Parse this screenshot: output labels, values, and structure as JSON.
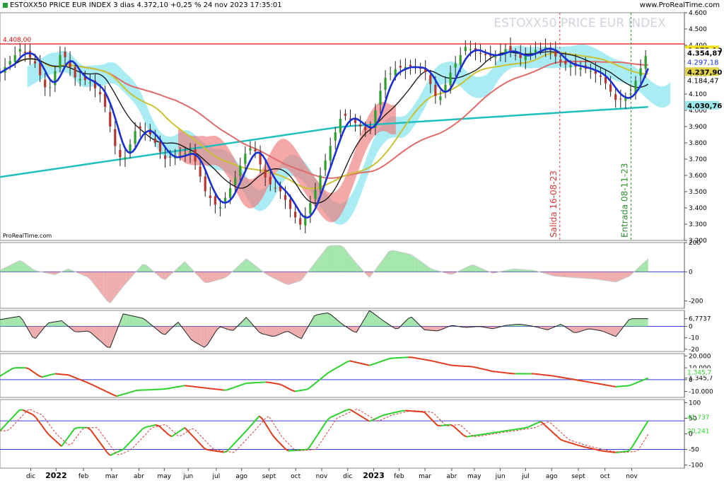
{
  "header": {
    "title": "ESTOXX50 PRICE EUR INDEX 3 dias 4.372,10 +0,25 % 24 nov 2023 17:35:01",
    "site": "www.ProRealTime.com"
  },
  "chart_data": [
    {
      "type": "candlestick",
      "watermark": "ESTOXX50 PRICE EUR INDEX",
      "credit": "ProRealTime.com",
      "ylim": [
        3200,
        4600
      ],
      "y_ticks": [
        "4.600",
        "4.500",
        "4.400",
        "4.300",
        "4.200",
        "4.100",
        "4.000",
        "3.900",
        "3.800",
        "3.700",
        "3.600",
        "3.500",
        "3.400",
        "3.300",
        "3.200"
      ],
      "x_ticks": [
        "dic",
        "2022",
        "feb",
        "mar",
        "abr",
        "may",
        "jun",
        "jul",
        "ago",
        "sept",
        "oct",
        "nov",
        "dic",
        "2023",
        "feb",
        "mar",
        "abr",
        "may",
        "jun",
        "jul",
        "ago",
        "sept",
        "oct",
        "nov"
      ],
      "x_tick_t": [
        0.045,
        0.082,
        0.122,
        0.163,
        0.203,
        0.24,
        0.275,
        0.316,
        0.353,
        0.393,
        0.432,
        0.47,
        0.508,
        0.546,
        0.583,
        0.621,
        0.66,
        0.693,
        0.731,
        0.768,
        0.806,
        0.845,
        0.884,
        0.923
      ],
      "close_path": [
        [
          0.0,
          4230
        ],
        [
          0.03,
          4380
        ],
        [
          0.05,
          4300
        ],
        [
          0.07,
          4100
        ],
        [
          0.09,
          4370
        ],
        [
          0.11,
          4200
        ],
        [
          0.13,
          4180
        ],
        [
          0.15,
          4080
        ],
        [
          0.17,
          3750
        ],
        [
          0.18,
          3680
        ],
        [
          0.2,
          3900
        ],
        [
          0.22,
          3850
        ],
        [
          0.24,
          3700
        ],
        [
          0.26,
          3720
        ],
        [
          0.28,
          3750
        ],
        [
          0.3,
          3500
        ],
        [
          0.32,
          3390
        ],
        [
          0.34,
          3550
        ],
        [
          0.36,
          3750
        ],
        [
          0.37,
          3780
        ],
        [
          0.39,
          3560
        ],
        [
          0.41,
          3500
        ],
        [
          0.43,
          3350
        ],
        [
          0.44,
          3290
        ],
        [
          0.46,
          3500
        ],
        [
          0.48,
          3750
        ],
        [
          0.5,
          3980
        ],
        [
          0.52,
          3920
        ],
        [
          0.54,
          3860
        ],
        [
          0.56,
          4190
        ],
        [
          0.58,
          4260
        ],
        [
          0.6,
          4270
        ],
        [
          0.62,
          4250
        ],
        [
          0.64,
          4050
        ],
        [
          0.66,
          4250
        ],
        [
          0.68,
          4390
        ],
        [
          0.7,
          4350
        ],
        [
          0.72,
          4330
        ],
        [
          0.74,
          4380
        ],
        [
          0.76,
          4320
        ],
        [
          0.78,
          4370
        ],
        [
          0.8,
          4390
        ],
        [
          0.82,
          4290
        ],
        [
          0.84,
          4270
        ],
        [
          0.86,
          4250
        ],
        [
          0.88,
          4200
        ],
        [
          0.9,
          4060
        ],
        [
          0.92,
          4090
        ],
        [
          0.94,
          4300
        ],
        [
          0.947,
          4372
        ]
      ],
      "ma_blue_label": "4.297,18",
      "ma_yellow_label": "4.237,90",
      "ma_red_label": "4.184,47",
      "ma_cyan_label": "4.030,76",
      "last_price_label": "4.372,10",
      "black_line_label": "4.354,87",
      "resistance": {
        "value": 4408,
        "label": "4.408,00"
      },
      "annotations": [
        {
          "label": "Salida 16-08-23",
          "t": 0.818,
          "color": "#d23b3b"
        },
        {
          "label": "Entrada 08-11-23",
          "t": 0.922,
          "color": "#2f8f2f"
        }
      ]
    },
    {
      "type": "area",
      "ylim": [
        -250,
        200
      ],
      "y_ticks": [
        "200",
        "0",
        "-200"
      ],
      "ref": 0,
      "path": [
        [
          0.0,
          10
        ],
        [
          0.03,
          80
        ],
        [
          0.05,
          10
        ],
        [
          0.08,
          -20
        ],
        [
          0.1,
          20
        ],
        [
          0.13,
          -40
        ],
        [
          0.16,
          -220
        ],
        [
          0.18,
          -100
        ],
        [
          0.21,
          60
        ],
        [
          0.24,
          -60
        ],
        [
          0.27,
          70
        ],
        [
          0.3,
          -80
        ],
        [
          0.33,
          -40
        ],
        [
          0.36,
          90
        ],
        [
          0.39,
          -20
        ],
        [
          0.42,
          -90
        ],
        [
          0.44,
          -60
        ],
        [
          0.48,
          180
        ],
        [
          0.5,
          180
        ],
        [
          0.52,
          60
        ],
        [
          0.54,
          -40
        ],
        [
          0.57,
          150
        ],
        [
          0.6,
          120
        ],
        [
          0.63,
          20
        ],
        [
          0.66,
          -20
        ],
        [
          0.69,
          50
        ],
        [
          0.72,
          -10
        ],
        [
          0.75,
          20
        ],
        [
          0.78,
          10
        ],
        [
          0.81,
          -30
        ],
        [
          0.84,
          -40
        ],
        [
          0.87,
          -50
        ],
        [
          0.9,
          -70
        ],
        [
          0.92,
          -30
        ],
        [
          0.947,
          90
        ]
      ]
    },
    {
      "type": "area",
      "ylim": [
        -22,
        14
      ],
      "y_ticks": [
        "6,7737",
        "0",
        "-10",
        "-20"
      ],
      "ref": 0,
      "path": [
        [
          0.0,
          6
        ],
        [
          0.03,
          9
        ],
        [
          0.05,
          -12
        ],
        [
          0.07,
          3
        ],
        [
          0.09,
          5
        ],
        [
          0.11,
          -5
        ],
        [
          0.13,
          -4
        ],
        [
          0.16,
          -20
        ],
        [
          0.18,
          11
        ],
        [
          0.21,
          7
        ],
        [
          0.24,
          -8
        ],
        [
          0.26,
          4
        ],
        [
          0.28,
          -12
        ],
        [
          0.3,
          -19
        ],
        [
          0.32,
          0
        ],
        [
          0.34,
          -4
        ],
        [
          0.36,
          8
        ],
        [
          0.38,
          -6
        ],
        [
          0.4,
          -9
        ],
        [
          0.42,
          -4
        ],
        [
          0.44,
          -11
        ],
        [
          0.46,
          10
        ],
        [
          0.48,
          12
        ],
        [
          0.5,
          2
        ],
        [
          0.52,
          -6
        ],
        [
          0.54,
          14
        ],
        [
          0.56,
          5
        ],
        [
          0.58,
          -3
        ],
        [
          0.6,
          9
        ],
        [
          0.62,
          -3
        ],
        [
          0.64,
          -4
        ],
        [
          0.66,
          1
        ],
        [
          0.68,
          -1
        ],
        [
          0.7,
          0
        ],
        [
          0.72,
          -2
        ],
        [
          0.74,
          1
        ],
        [
          0.76,
          2
        ],
        [
          0.78,
          0
        ],
        [
          0.8,
          -3
        ],
        [
          0.82,
          2
        ],
        [
          0.84,
          -6
        ],
        [
          0.86,
          -2
        ],
        [
          0.88,
          -4
        ],
        [
          0.9,
          -9
        ],
        [
          0.92,
          6.8
        ],
        [
          0.947,
          6.8
        ]
      ]
    },
    {
      "type": "line",
      "ylim": [
        -15000,
        22000
      ],
      "y_ticks": [
        "20.000",
        "10.000",
        "1.345,7",
        "0",
        "-10.000"
      ],
      "ref": 0,
      "path": [
        [
          0.0,
          3000
        ],
        [
          0.02,
          10000
        ],
        [
          0.04,
          10000
        ],
        [
          0.06,
          2000
        ],
        [
          0.08,
          5000
        ],
        [
          0.1,
          4000
        ],
        [
          0.13,
          -3000
        ],
        [
          0.17,
          -14000
        ],
        [
          0.2,
          -9000
        ],
        [
          0.24,
          -8000
        ],
        [
          0.27,
          -5000
        ],
        [
          0.3,
          -7000
        ],
        [
          0.33,
          -9000
        ],
        [
          0.36,
          -3000
        ],
        [
          0.39,
          -2000
        ],
        [
          0.41,
          -4000
        ],
        [
          0.43,
          -10000
        ],
        [
          0.45,
          -8000
        ],
        [
          0.48,
          6000
        ],
        [
          0.51,
          16000
        ],
        [
          0.54,
          12000
        ],
        [
          0.57,
          18000
        ],
        [
          0.6,
          19000
        ],
        [
          0.63,
          16000
        ],
        [
          0.66,
          12000
        ],
        [
          0.69,
          11000
        ],
        [
          0.72,
          7000
        ],
        [
          0.75,
          5000
        ],
        [
          0.78,
          5000
        ],
        [
          0.81,
          3000
        ],
        [
          0.84,
          0
        ],
        [
          0.87,
          -3000
        ],
        [
          0.9,
          -6000
        ],
        [
          0.92,
          -5000
        ],
        [
          0.947,
          1345
        ]
      ],
      "last_label": "1.345,7"
    },
    {
      "type": "line",
      "ylim": [
        -110,
        110
      ],
      "y_ticks": [
        "100",
        "50",
        "0",
        "-50",
        "-100"
      ],
      "ref": [
        41.737,
        -50
      ],
      "path": [
        [
          0.0,
          10
        ],
        [
          0.03,
          80
        ],
        [
          0.05,
          60
        ],
        [
          0.07,
          0
        ],
        [
          0.09,
          -40
        ],
        [
          0.11,
          20
        ],
        [
          0.13,
          20
        ],
        [
          0.16,
          -70
        ],
        [
          0.18,
          -50
        ],
        [
          0.21,
          20
        ],
        [
          0.23,
          30
        ],
        [
          0.25,
          -10
        ],
        [
          0.27,
          20
        ],
        [
          0.3,
          -50
        ],
        [
          0.33,
          -60
        ],
        [
          0.36,
          10
        ],
        [
          0.38,
          60
        ],
        [
          0.4,
          -10
        ],
        [
          0.42,
          -55
        ],
        [
          0.45,
          -50
        ],
        [
          0.48,
          50
        ],
        [
          0.51,
          80
        ],
        [
          0.54,
          40
        ],
        [
          0.56,
          60
        ],
        [
          0.59,
          75
        ],
        [
          0.62,
          70
        ],
        [
          0.64,
          25
        ],
        [
          0.66,
          30
        ],
        [
          0.68,
          -10
        ],
        [
          0.71,
          0
        ],
        [
          0.74,
          10
        ],
        [
          0.77,
          20
        ],
        [
          0.79,
          40
        ],
        [
          0.82,
          -20
        ],
        [
          0.85,
          -40
        ],
        [
          0.88,
          -55
        ],
        [
          0.9,
          -60
        ],
        [
          0.92,
          -55
        ],
        [
          0.947,
          42
        ]
      ],
      "labels": [
        "41,737",
        "20,241"
      ]
    }
  ]
}
